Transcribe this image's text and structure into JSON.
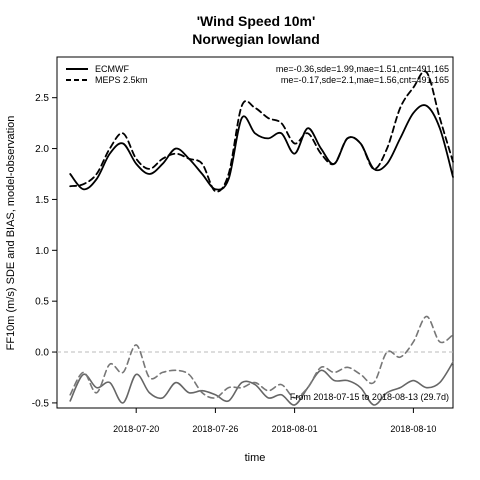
{
  "chart_data": {
    "type": "line",
    "title": "'Wind Speed 10m'",
    "subtitle": "Norwegian lowland",
    "xlabel": "time",
    "ylabel": "FF10m (m/s) SDE and BIAS, model-observation",
    "ylim": [
      -0.55,
      2.9
    ],
    "yticks": [
      -0.5,
      0.0,
      0.5,
      1.0,
      1.5,
      2.0,
      2.5
    ],
    "ytick_labels": [
      "-0.5",
      "0.0",
      "0.5",
      "1.0",
      "1.5",
      "2.0",
      "2.5"
    ],
    "xlim": [
      "2018-07-14",
      "2018-08-13"
    ],
    "xticks": [
      "2018-07-20",
      "2018-07-26",
      "2018-08-01",
      "2018-08-10"
    ],
    "xtick_labels": [
      "2018-07-20",
      "2018-07-26",
      "2018-08-01",
      "2018-08-10"
    ],
    "zero_line": 0.0,
    "grid": false,
    "legend_position": "top-left",
    "legend": [
      {
        "label": "ECMWF",
        "style": "solid"
      },
      {
        "label": "MEPS 2.5km",
        "style": "dashed"
      }
    ],
    "stats": [
      "me=-0.36,sde=1.99,mae=1.51,cnt=491,165",
      "me=-0.17,sde=2.1,mae=1.56,cnt=491,165"
    ],
    "note": "From 2018-07-15 to 2018-08-13 (29.7d)",
    "x": [
      "2018-07-15",
      "2018-07-16",
      "2018-07-17",
      "2018-07-18",
      "2018-07-19",
      "2018-07-20",
      "2018-07-21",
      "2018-07-22",
      "2018-07-23",
      "2018-07-24",
      "2018-07-25",
      "2018-07-26",
      "2018-07-27",
      "2018-07-28",
      "2018-07-29",
      "2018-07-30",
      "2018-07-31",
      "2018-08-01",
      "2018-08-02",
      "2018-08-03",
      "2018-08-04",
      "2018-08-05",
      "2018-08-06",
      "2018-08-07",
      "2018-08-08",
      "2018-08-09",
      "2018-08-10",
      "2018-08-11",
      "2018-08-12",
      "2018-08-13"
    ],
    "series": [
      {
        "name": "ECMWF",
        "kind": "sde",
        "color": "#000000",
        "dash": "solid",
        "values": [
          1.75,
          1.6,
          1.7,
          1.95,
          2.05,
          1.85,
          1.75,
          1.85,
          2.0,
          1.9,
          1.75,
          1.6,
          1.7,
          2.3,
          2.15,
          2.1,
          2.15,
          1.95,
          2.2,
          2.0,
          1.85,
          2.1,
          2.05,
          1.8,
          1.85,
          2.1,
          2.35,
          2.42,
          2.2,
          1.72
        ]
      },
      {
        "name": "MEPS 2.5km",
        "kind": "sde",
        "color": "#000000",
        "dash": "dashed",
        "values": [
          1.63,
          1.65,
          1.75,
          2.0,
          2.15,
          1.9,
          1.8,
          1.9,
          1.95,
          1.9,
          1.85,
          1.58,
          1.75,
          2.42,
          2.4,
          2.3,
          2.25,
          2.05,
          2.15,
          1.95,
          1.85,
          2.1,
          2.05,
          1.8,
          2.0,
          2.4,
          2.6,
          2.75,
          2.3,
          1.87
        ]
      },
      {
        "name": "ECMWF",
        "kind": "bias",
        "color": "#666666",
        "dash": "solid",
        "values": [
          -0.48,
          -0.22,
          -0.35,
          -0.3,
          -0.5,
          -0.22,
          -0.4,
          -0.45,
          -0.3,
          -0.4,
          -0.38,
          -0.42,
          -0.48,
          -0.3,
          -0.32,
          -0.45,
          -0.42,
          -0.52,
          -0.35,
          -0.18,
          -0.28,
          -0.28,
          -0.35,
          -0.52,
          -0.4,
          -0.35,
          -0.28,
          -0.35,
          -0.3,
          -0.1
        ]
      },
      {
        "name": "MEPS 2.5km",
        "kind": "bias",
        "color": "#777777",
        "dash": "dashed",
        "values": [
          -0.42,
          -0.2,
          -0.4,
          -0.12,
          -0.2,
          0.07,
          -0.25,
          -0.2,
          -0.18,
          -0.22,
          -0.4,
          -0.45,
          -0.35,
          -0.35,
          -0.3,
          -0.38,
          -0.32,
          -0.45,
          -0.35,
          -0.15,
          -0.2,
          -0.15,
          -0.22,
          -0.3,
          0.0,
          -0.05,
          0.1,
          0.35,
          0.1,
          0.17
        ]
      }
    ]
  }
}
